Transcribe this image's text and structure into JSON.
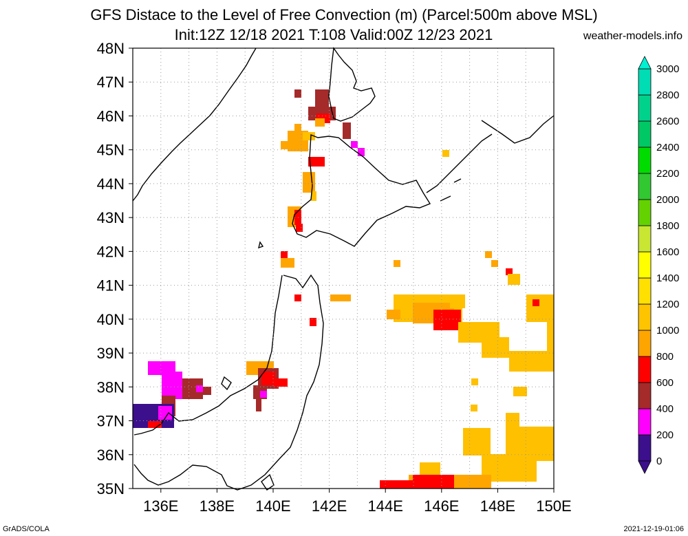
{
  "title_line1": "GFS Distace to the Level of Free Convection (m) (Parcel:500m above MSL)",
  "title_line2": "Init:12Z 12/18 2021 T:108 Valid:00Z 12/23 2021",
  "site": "weather-models.info",
  "footer_left": "GrADS/COLA",
  "footer_right": "2021-12-19-01:06",
  "map": {
    "lon_range": [
      135,
      150
    ],
    "lat_range": [
      35,
      48
    ],
    "lon_ticks": [
      "136E",
      "138E",
      "140E",
      "142E",
      "144E",
      "146E",
      "148E",
      "150E"
    ],
    "lat_ticks": [
      "35N",
      "36N",
      "37N",
      "38N",
      "39N",
      "40N",
      "41N",
      "42N",
      "43N",
      "44N",
      "45N",
      "46N",
      "47N",
      "48N"
    ]
  },
  "colorbar": {
    "labels": [
      "0",
      "200",
      "400",
      "600",
      "800",
      "1000",
      "1200",
      "1400",
      "1600",
      "1800",
      "2000",
      "2200",
      "2400",
      "2600",
      "2800",
      "3000"
    ],
    "colors": [
      "#3c0f8c",
      "#ff00ff",
      "#a52a2a",
      "#ff0000",
      "#ffa500",
      "#ffc400",
      "#ffe000",
      "#ffff00",
      "#c8e632",
      "#64d200",
      "#32c832",
      "#00dc00",
      "#00c864",
      "#00d28c",
      "#00dcb4",
      "#00f0d2"
    ],
    "top_tri_color": "#00f0d2",
    "bottom_tri_color": "#3c0f8c"
  },
  "legend_palette": {
    "purple": "#3c0f8c",
    "magenta": "#ff00ff",
    "brown": "#a52a2a",
    "red": "#ff0000",
    "orange": "#ffa500",
    "gold": "#ffc000",
    "yellow": "#ffd500"
  }
}
